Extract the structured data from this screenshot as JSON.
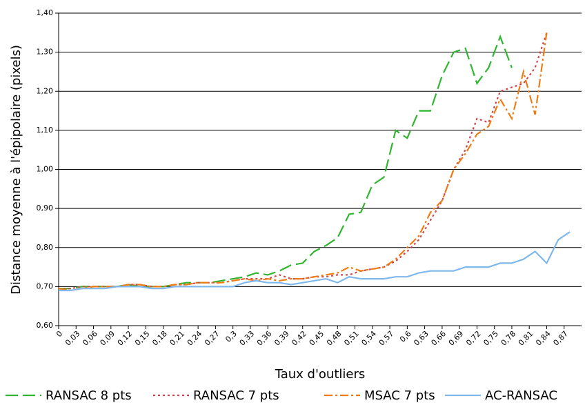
{
  "chart_data": {
    "type": "line",
    "x_label": "Taux d'outliers",
    "y_label": "Distance moyenne à l'épipolaire (pixels)",
    "x": [
      0,
      0.02,
      0.04,
      0.06,
      0.08,
      0.1,
      0.12,
      0.14,
      0.16,
      0.18,
      0.2,
      0.22,
      0.24,
      0.26,
      0.28,
      0.3,
      0.32,
      0.34,
      0.36,
      0.38,
      0.4,
      0.42,
      0.44,
      0.46,
      0.48,
      0.5,
      0.52,
      0.54,
      0.56,
      0.58,
      0.6,
      0.62,
      0.64,
      0.66,
      0.68,
      0.7,
      0.72,
      0.74,
      0.76,
      0.78,
      0.8,
      0.82,
      0.84,
      0.86,
      0.88
    ],
    "series": [
      {
        "name": "RANSAC 8 pts",
        "color": "#2fb52f",
        "dash": "18,7",
        "values": [
          0.695,
          0.695,
          0.7,
          0.7,
          0.7,
          0.7,
          0.705,
          0.7,
          0.7,
          0.7,
          0.705,
          0.71,
          0.71,
          0.71,
          0.715,
          0.72,
          0.725,
          0.735,
          0.73,
          0.74,
          0.755,
          0.76,
          0.79,
          0.805,
          0.825,
          0.885,
          0.89,
          0.96,
          0.98,
          1.1,
          1.08,
          1.15,
          1.15,
          1.24,
          1.3,
          1.31,
          1.22,
          1.26,
          1.34,
          1.26,
          null,
          null,
          null,
          null,
          null
        ]
      },
      {
        "name": "RANSAC 7 pts",
        "color": "#d2474b",
        "dash": "3,4",
        "values": [
          0.695,
          0.695,
          0.7,
          0.7,
          0.7,
          0.7,
          0.705,
          0.705,
          0.7,
          0.7,
          0.705,
          0.705,
          0.71,
          0.71,
          0.71,
          0.715,
          0.72,
          0.72,
          0.72,
          0.73,
          0.72,
          0.72,
          0.725,
          0.725,
          0.73,
          0.73,
          0.74,
          0.745,
          0.75,
          0.765,
          0.79,
          0.82,
          0.87,
          0.92,
          1.0,
          1.05,
          1.13,
          1.12,
          1.2,
          1.21,
          1.22,
          1.26,
          1.35,
          null,
          null
        ]
      },
      {
        "name": "MSAC 7 pts",
        "color": "#f07b12",
        "dash": "12,4,3,4",
        "values": [
          0.695,
          0.69,
          0.695,
          0.7,
          0.7,
          0.7,
          0.705,
          0.705,
          0.7,
          0.7,
          0.705,
          0.705,
          0.71,
          0.71,
          0.71,
          0.715,
          0.72,
          0.715,
          0.72,
          0.715,
          0.72,
          0.72,
          0.725,
          0.73,
          0.735,
          0.75,
          0.74,
          0.745,
          0.75,
          0.77,
          0.8,
          0.83,
          0.89,
          0.92,
          1.0,
          1.04,
          1.09,
          1.11,
          1.18,
          1.13,
          1.25,
          1.14,
          1.35,
          null,
          null
        ]
      },
      {
        "name": "AC-RANSAC",
        "color": "#7fb8ec",
        "dash": "none",
        "values": [
          0.69,
          0.69,
          0.695,
          0.695,
          0.695,
          0.7,
          0.7,
          0.7,
          0.695,
          0.695,
          0.7,
          0.7,
          0.7,
          0.7,
          0.7,
          0.7,
          0.71,
          0.715,
          0.71,
          0.71,
          0.705,
          0.71,
          0.715,
          0.72,
          0.71,
          0.725,
          0.72,
          0.72,
          0.72,
          0.725,
          0.725,
          0.735,
          0.74,
          0.74,
          0.74,
          0.75,
          0.75,
          0.75,
          0.76,
          0.76,
          0.77,
          0.79,
          0.76,
          0.82,
          0.84
        ]
      }
    ],
    "xlim": [
      0,
      0.9
    ],
    "xticks": [
      0,
      {
        "value": 0.03,
        "label": "0,03"
      },
      {
        "value": 0.06,
        "label": "0,06"
      },
      {
        "value": 0.09,
        "label": "0,09"
      },
      {
        "value": 0.12,
        "label": "0,12"
      },
      {
        "value": 0.15,
        "label": "0,15"
      },
      {
        "value": 0.18,
        "label": "0,18"
      },
      {
        "value": 0.21,
        "label": "0,21"
      },
      {
        "value": 0.24,
        "label": "0,24"
      },
      {
        "value": 0.27,
        "label": "0,27"
      },
      {
        "value": 0.3,
        "label": "0,3"
      },
      {
        "value": 0.33,
        "label": "0,33"
      },
      {
        "value": 0.36,
        "label": "0,36"
      },
      {
        "value": 0.39,
        "label": "0,39"
      },
      {
        "value": 0.42,
        "label": "0,42"
      },
      {
        "value": 0.45,
        "label": "0,45"
      },
      {
        "value": 0.48,
        "label": "0,48"
      },
      {
        "value": 0.51,
        "label": "0,51"
      },
      {
        "value": 0.54,
        "label": "0,54"
      },
      {
        "value": 0.57,
        "label": "0,57"
      },
      {
        "value": 0.6,
        "label": "0,6"
      },
      {
        "value": 0.63,
        "label": "0,63"
      },
      {
        "value": 0.66,
        "label": "0,66"
      },
      {
        "value": 0.69,
        "label": "0,69"
      },
      {
        "value": 0.72,
        "label": "0,72"
      },
      {
        "value": 0.75,
        "label": "0,75"
      },
      {
        "value": 0.78,
        "label": "0,78"
      },
      {
        "value": 0.81,
        "label": "0,81"
      },
      {
        "value": 0.84,
        "label": "0,84"
      },
      {
        "value": 0.87,
        "label": "0,87"
      }
    ],
    "ylim": [
      0.6,
      1.4
    ],
    "yticks": [
      {
        "value": 0.6,
        "label": "0,60"
      },
      {
        "value": 0.7,
        "label": "0,70"
      },
      {
        "value": 0.8,
        "label": "0,80"
      },
      {
        "value": 0.9,
        "label": "0,90"
      },
      {
        "value": 1.0,
        "label": "1,00"
      },
      {
        "value": 1.1,
        "label": "1,10"
      },
      {
        "value": 1.2,
        "label": "1,20"
      },
      {
        "value": 1.3,
        "label": "1,30"
      },
      {
        "value": 1.4,
        "label": "1,40"
      }
    ],
    "grid": true,
    "legend": "bottom"
  }
}
